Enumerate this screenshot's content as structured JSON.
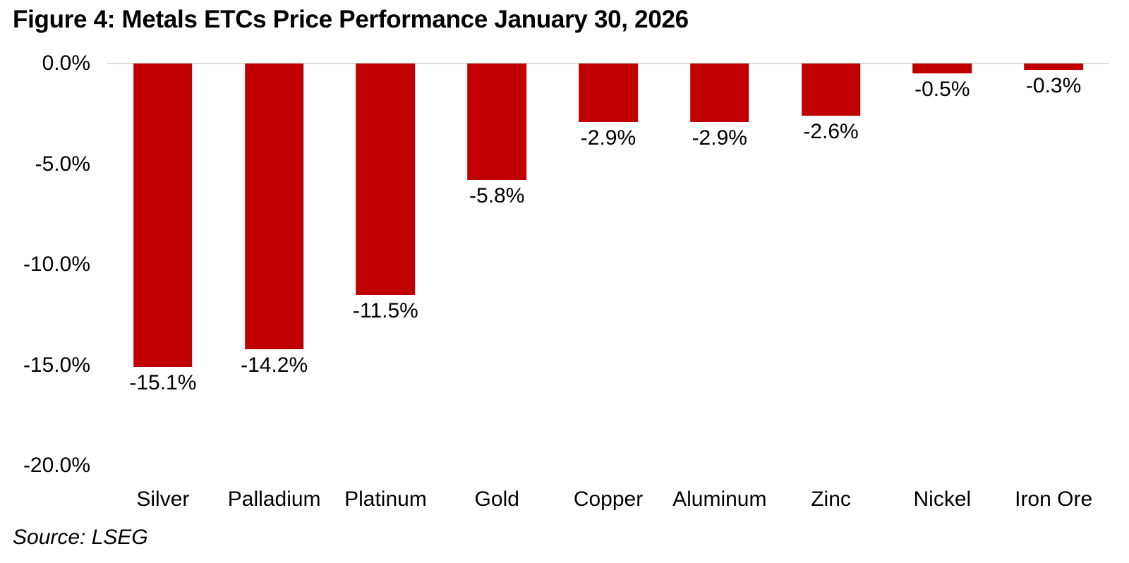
{
  "figure": {
    "title": "Figure 4: Metals ETCs Price Performance January 30, 2026",
    "source": "Source: LSEG"
  },
  "colors": {
    "bar": "#c00000",
    "zero_line": "#d9d9d9",
    "text": "#000000",
    "background": "#ffffff"
  },
  "chart_data": {
    "type": "bar",
    "title": "Figure 4: Metals ETCs Price Performance January 30, 2026",
    "categories": [
      "Silver",
      "Palladium",
      "Platinum",
      "Gold",
      "Copper",
      "Aluminum",
      "Zinc",
      "Nickel",
      "Iron Ore"
    ],
    "values": [
      -15.1,
      -14.2,
      -11.5,
      -5.8,
      -2.9,
      -2.9,
      -2.6,
      -0.5,
      -0.3
    ],
    "value_labels": [
      "-15.1%",
      "-14.2%",
      "-11.5%",
      "-5.8%",
      "-2.9%",
      "-2.9%",
      "-2.6%",
      "-0.5%",
      "-0.3%"
    ],
    "unit": "%",
    "xlabel": "",
    "ylabel": "",
    "ylim": [
      0,
      -20
    ],
    "yticks": [
      {
        "label": "0.0%",
        "value": 0
      },
      {
        "label": "-5.0%",
        "value": -5
      },
      {
        "label": "-10.0%",
        "value": -10
      },
      {
        "label": "-15.0%",
        "value": -15
      },
      {
        "label": "-20.0%",
        "value": -20
      }
    ],
    "grid": false,
    "legend": false,
    "bar_color": "#c00000",
    "data_labels_position": "below-bar",
    "source": "Source: LSEG"
  }
}
